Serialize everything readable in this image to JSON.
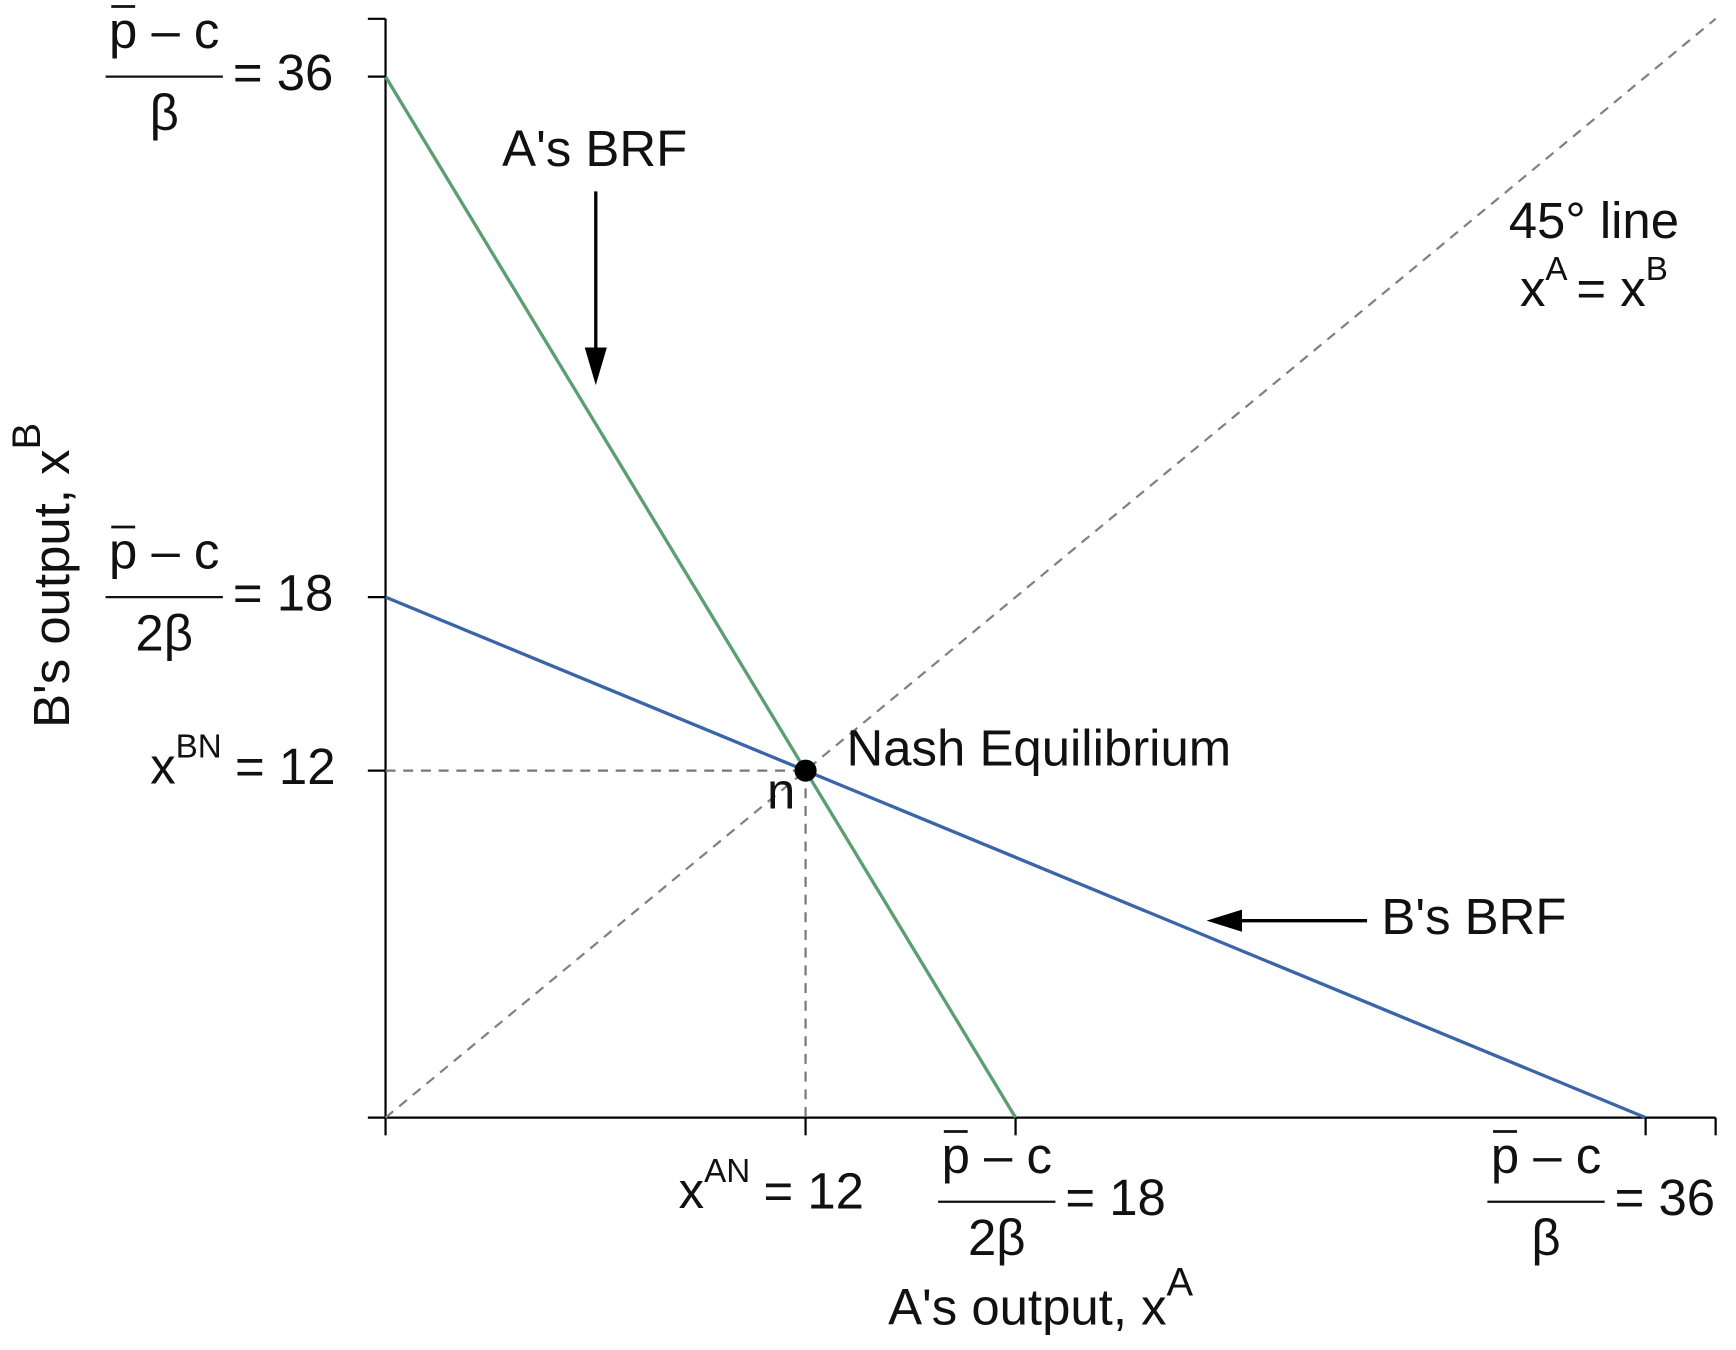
{
  "chart_data": {
    "type": "line",
    "xlabel": "A's output, x",
    "xlabel_sup": "A",
    "ylabel": "B's output, x",
    "ylabel_sup": "B",
    "xlim": [
      0,
      38
    ],
    "ylim": [
      0,
      38
    ],
    "xticks": [
      {
        "value": 12,
        "label": "= 12",
        "symbol": "x",
        "sup": "AN"
      },
      {
        "value": 18,
        "label": "= 18",
        "numerator": "p – c",
        "denominator": "2β"
      },
      {
        "value": 36,
        "label": "= 36",
        "numerator": "p – c",
        "denominator": "β"
      }
    ],
    "yticks": [
      {
        "value": 12,
        "label": "= 12",
        "symbol": "x",
        "sup": "BN"
      },
      {
        "value": 18,
        "label": "= 18",
        "numerator": "p – c",
        "denominator": "2β"
      },
      {
        "value": 36,
        "label": "= 36",
        "numerator": "p – c",
        "denominator": "β"
      }
    ],
    "series": [
      {
        "name": "A's BRF",
        "color": "#5a9e72",
        "x": [
          0,
          18
        ],
        "values": [
          36,
          0
        ]
      },
      {
        "name": "B's BRF",
        "color": "#3a65a8",
        "x": [
          0,
          36
        ],
        "values": [
          18,
          0
        ]
      },
      {
        "name": "45° line",
        "color": "#808080",
        "dashed": true,
        "x": [
          0,
          38
        ],
        "values": [
          0,
          38
        ],
        "equation": [
          "x",
          "A",
          "= x",
          "B"
        ]
      }
    ],
    "point": {
      "label": "n",
      "annotation": "Nash Equilibrium",
      "x": 12,
      "y": 12
    }
  }
}
